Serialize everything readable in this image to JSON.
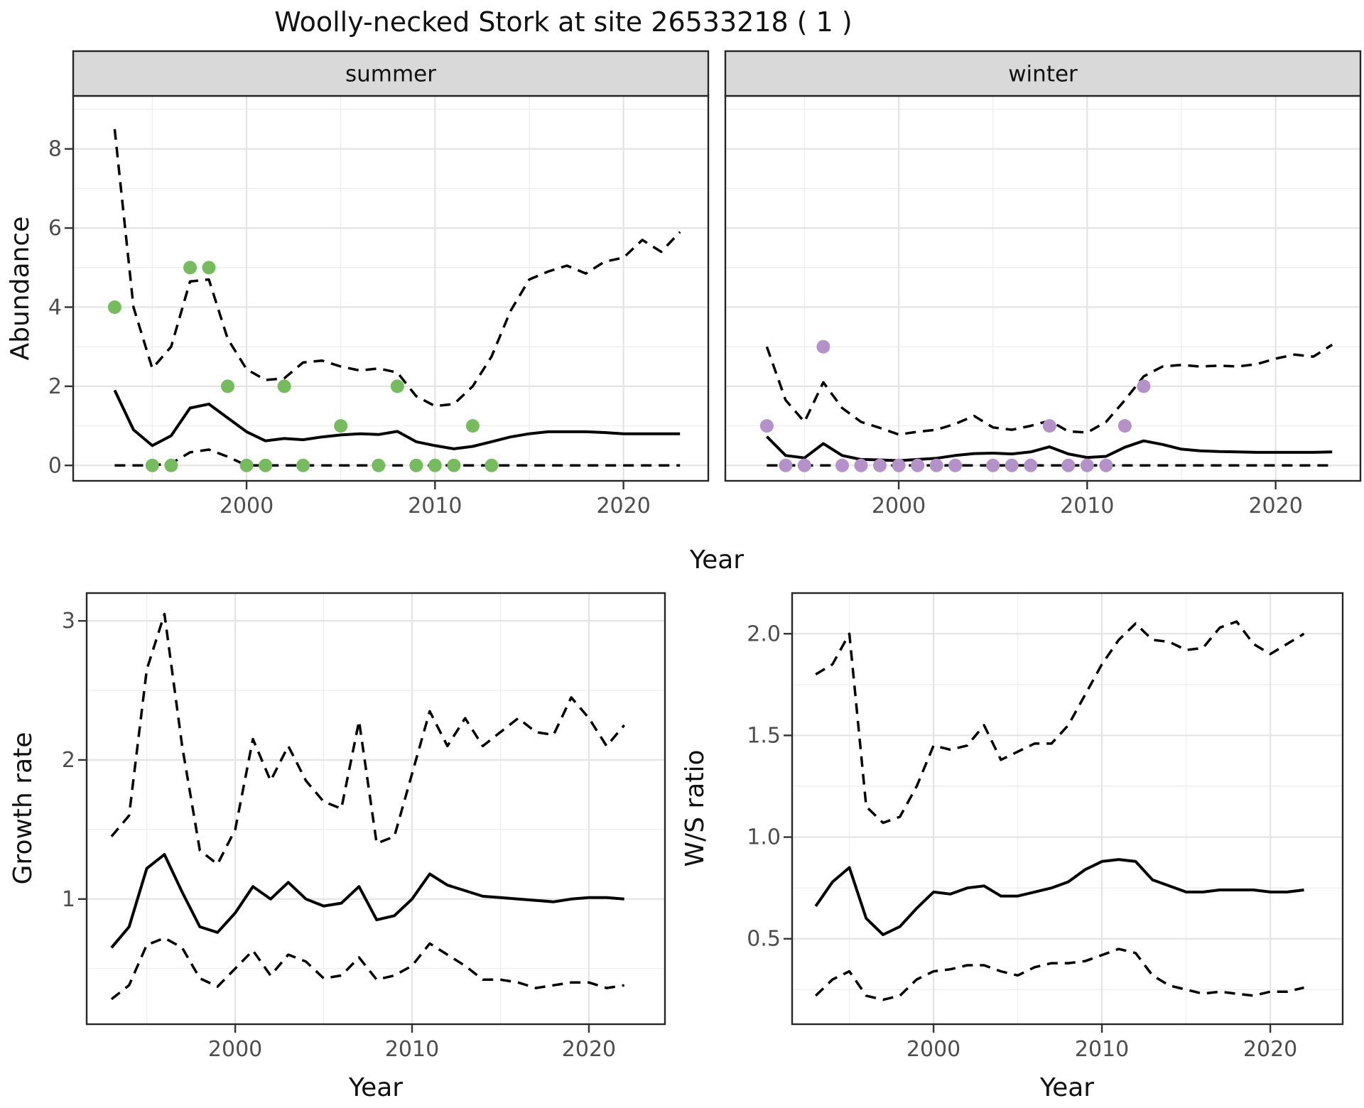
{
  "title": "Woolly-necked Stork at site 26533218 ( 1 )",
  "facets": {
    "summer_label": "summer",
    "winter_label": "winter"
  },
  "axis_titles": {
    "abundance": "Abundance",
    "year_top": "Year",
    "growth": "Growth rate",
    "ws": "W/S ratio",
    "year_growth": "Year",
    "year_ws": "Year"
  },
  "colors": {
    "summer_point": "#76bc5e",
    "winter_point": "#b591c9",
    "line": "#000000",
    "grid_major": "#e4e4e4",
    "grid_minor": "#efefef",
    "strip_fill": "#d9d9d9",
    "panel_border": "#262626",
    "tick_mark": "#333333",
    "tick_label": "#4d4d4d",
    "background": "#ffffff"
  },
  "chart_data": [
    {
      "id": "abundance_summer",
      "type": "line",
      "facet": "summer",
      "xlabel": "Year",
      "ylabel": "Abundance",
      "xlim": [
        1990.8,
        2024.5
      ],
      "ylim": [
        -0.39,
        9.34
      ],
      "x_ticks": {
        "values": [
          2000,
          2010,
          2020
        ],
        "labels": [
          "2000",
          "2010",
          "2020"
        ],
        "minor": [
          1995,
          2005,
          2015
        ]
      },
      "y_ticks": {
        "values": [
          0,
          2,
          4,
          6,
          8
        ],
        "labels": [
          "0",
          "2",
          "4",
          "6",
          "8"
        ],
        "minor": [
          1,
          3,
          5,
          7,
          9
        ]
      },
      "x": [
        1993,
        1994,
        1995,
        1996,
        1997,
        1998,
        1999,
        2000,
        2001,
        2002,
        2003,
        2004,
        2005,
        2006,
        2007,
        2008,
        2009,
        2010,
        2011,
        2012,
        2013,
        2014,
        2015,
        2016,
        2017,
        2018,
        2019,
        2020,
        2021,
        2022,
        2023
      ],
      "series": [
        {
          "name": "mean",
          "style": "solid",
          "values": [
            1.9,
            0.9,
            0.5,
            0.75,
            1.45,
            1.55,
            1.2,
            0.85,
            0.62,
            0.68,
            0.65,
            0.72,
            0.77,
            0.8,
            0.78,
            0.86,
            0.6,
            0.5,
            0.42,
            0.48,
            0.6,
            0.72,
            0.8,
            0.85,
            0.85,
            0.85,
            0.83,
            0.8,
            0.8,
            0.8,
            0.8
          ]
        },
        {
          "name": "upper_ci",
          "style": "dashed",
          "values": [
            8.5,
            4.0,
            2.45,
            3.0,
            4.65,
            4.7,
            3.2,
            2.43,
            2.16,
            2.2,
            2.6,
            2.65,
            2.5,
            2.4,
            2.45,
            2.35,
            1.75,
            1.5,
            1.55,
            2.0,
            2.75,
            3.9,
            4.7,
            4.9,
            5.05,
            4.85,
            5.15,
            5.25,
            5.7,
            5.4,
            5.9
          ]
        },
        {
          "name": "lower_ci",
          "style": "dashed",
          "values": [
            0,
            0,
            0,
            0.05,
            0.33,
            0.4,
            0.22,
            0,
            0,
            0,
            0,
            0,
            0,
            0,
            0,
            0,
            0,
            0,
            0,
            0,
            0,
            0,
            0,
            0,
            0,
            0,
            0,
            0,
            0,
            0,
            0
          ]
        }
      ],
      "observations": {
        "x": [
          1993,
          1995,
          1996,
          1997,
          1998,
          1999,
          2000,
          2001,
          2002,
          2003,
          2005,
          2007,
          2008,
          2009,
          2010,
          2011,
          2012,
          2013
        ],
        "y": [
          4,
          0,
          0,
          5,
          5,
          2,
          0,
          0,
          2,
          0,
          1,
          0,
          2,
          0,
          0,
          0,
          1,
          0
        ],
        "color_key": "summer_point"
      }
    },
    {
      "id": "abundance_winter",
      "type": "line",
      "facet": "winter",
      "xlabel": "Year",
      "ylabel": "Abundance",
      "xlim": [
        1990.8,
        2024.5
      ],
      "ylim": [
        -0.39,
        9.34
      ],
      "x_ticks": {
        "values": [
          2000,
          2010,
          2020
        ],
        "labels": [
          "2000",
          "2010",
          "2020"
        ],
        "minor": [
          1995,
          2005,
          2015
        ]
      },
      "y_ticks": {
        "values": [
          0,
          2,
          4,
          6,
          8
        ],
        "labels": [
          "0",
          "2",
          "4",
          "6",
          "8"
        ],
        "minor": [
          1,
          3,
          5,
          7,
          9
        ]
      },
      "x": [
        1993,
        1994,
        1995,
        1996,
        1997,
        1998,
        1999,
        2000,
        2001,
        2002,
        2003,
        2004,
        2005,
        2006,
        2007,
        2008,
        2009,
        2010,
        2011,
        2012,
        2013,
        2014,
        2015,
        2016,
        2017,
        2018,
        2019,
        2020,
        2021,
        2022,
        2023
      ],
      "series": [
        {
          "name": "mean",
          "style": "solid",
          "values": [
            0.73,
            0.25,
            0.19,
            0.55,
            0.25,
            0.15,
            0.14,
            0.12,
            0.15,
            0.18,
            0.25,
            0.3,
            0.31,
            0.29,
            0.34,
            0.47,
            0.29,
            0.2,
            0.23,
            0.46,
            0.62,
            0.53,
            0.41,
            0.37,
            0.35,
            0.34,
            0.33,
            0.33,
            0.33,
            0.33,
            0.34
          ]
        },
        {
          "name": "upper_ci",
          "style": "dashed",
          "values": [
            3.0,
            1.65,
            1.1,
            2.1,
            1.45,
            1.1,
            0.95,
            0.78,
            0.85,
            0.9,
            1.05,
            1.25,
            0.96,
            0.9,
            1.0,
            1.13,
            0.86,
            0.83,
            1.1,
            1.65,
            2.25,
            2.5,
            2.54,
            2.5,
            2.52,
            2.5,
            2.56,
            2.7,
            2.8,
            2.75,
            3.05
          ]
        },
        {
          "name": "lower_ci",
          "style": "dashed",
          "values": [
            0,
            0,
            0,
            0,
            0,
            0,
            0,
            0,
            0,
            0,
            0,
            0,
            0,
            0,
            0,
            0,
            0,
            0,
            0,
            0,
            0,
            0,
            0,
            0,
            0,
            0,
            0,
            0,
            0,
            0,
            0
          ]
        }
      ],
      "observations": {
        "x": [
          1993,
          1994,
          1995,
          1996,
          1997,
          1998,
          1999,
          2000,
          2001,
          2002,
          2003,
          2005,
          2006,
          2007,
          2008,
          2009,
          2010,
          2011,
          2012,
          2013
        ],
        "y": [
          1,
          0,
          0,
          3,
          0,
          0,
          0,
          0,
          0,
          0,
          0,
          0,
          0,
          0,
          1,
          0,
          0,
          0,
          1,
          2
        ],
        "color_key": "winter_point"
      }
    },
    {
      "id": "growth_rate",
      "type": "line",
      "xlabel": "Year",
      "ylabel": "Growth rate",
      "xlim": [
        1991.6,
        2024.3
      ],
      "ylim": [
        0.1,
        3.2
      ],
      "x_ticks": {
        "values": [
          2000,
          2010,
          2020
        ],
        "labels": [
          "2000",
          "2010",
          "2020"
        ],
        "minor": [
          1995,
          2005,
          2015
        ]
      },
      "y_ticks": {
        "values": [
          1,
          2,
          3
        ],
        "labels": [
          "1",
          "2",
          "3"
        ],
        "minor": [
          0.5,
          1.5,
          2.5
        ]
      },
      "x": [
        1993,
        1994,
        1995,
        1996,
        1997,
        1998,
        1999,
        2000,
        2001,
        2002,
        2003,
        2004,
        2005,
        2006,
        2007,
        2008,
        2009,
        2010,
        2011,
        2012,
        2013,
        2014,
        2015,
        2016,
        2017,
        2018,
        2019,
        2020,
        2021,
        2022
      ],
      "series": [
        {
          "name": "mean",
          "style": "solid",
          "values": [
            0.65,
            0.8,
            1.22,
            1.32,
            1.05,
            0.8,
            0.76,
            0.9,
            1.09,
            1.0,
            1.12,
            1.0,
            0.95,
            0.97,
            1.09,
            0.85,
            0.88,
            1.0,
            1.18,
            1.1,
            1.06,
            1.02,
            1.01,
            1.0,
            0.99,
            0.98,
            1.0,
            1.01,
            1.01,
            1.0
          ]
        },
        {
          "name": "upper_ci",
          "style": "dashed",
          "values": [
            1.45,
            1.6,
            2.65,
            3.05,
            2.1,
            1.35,
            1.25,
            1.5,
            2.15,
            1.85,
            2.1,
            1.85,
            1.7,
            1.65,
            2.28,
            1.4,
            1.45,
            1.9,
            2.35,
            2.1,
            2.3,
            2.1,
            2.2,
            2.3,
            2.2,
            2.18,
            2.45,
            2.3,
            2.1,
            2.25
          ]
        },
        {
          "name": "lower_ci",
          "style": "dashed",
          "values": [
            0.28,
            0.38,
            0.67,
            0.72,
            0.65,
            0.43,
            0.37,
            0.5,
            0.63,
            0.45,
            0.6,
            0.55,
            0.43,
            0.45,
            0.58,
            0.42,
            0.45,
            0.52,
            0.68,
            0.6,
            0.52,
            0.42,
            0.42,
            0.4,
            0.36,
            0.38,
            0.4,
            0.4,
            0.36,
            0.38
          ]
        }
      ]
    },
    {
      "id": "ws_ratio",
      "type": "line",
      "xlabel": "Year",
      "ylabel": "W/S ratio",
      "xlim": [
        1991.6,
        2024.3
      ],
      "ylim": [
        0.08,
        2.2
      ],
      "x_ticks": {
        "values": [
          2000,
          2010,
          2020
        ],
        "labels": [
          "2000",
          "2010",
          "2020"
        ],
        "minor": [
          1995,
          2005,
          2015
        ]
      },
      "y_ticks": {
        "values": [
          0.5,
          1.0,
          1.5,
          2.0
        ],
        "labels": [
          "0.5",
          "1.0",
          "1.5",
          "2.0"
        ],
        "minor": [
          0.25,
          0.75,
          1.25,
          1.75
        ]
      },
      "x": [
        1993,
        1994,
        1995,
        1996,
        1997,
        1998,
        1999,
        2000,
        2001,
        2002,
        2003,
        2004,
        2005,
        2006,
        2007,
        2008,
        2009,
        2010,
        2011,
        2012,
        2013,
        2014,
        2015,
        2016,
        2017,
        2018,
        2019,
        2020,
        2021,
        2022
      ],
      "series": [
        {
          "name": "mean",
          "style": "solid",
          "values": [
            0.66,
            0.78,
            0.85,
            0.6,
            0.52,
            0.56,
            0.65,
            0.73,
            0.72,
            0.75,
            0.76,
            0.71,
            0.71,
            0.73,
            0.75,
            0.78,
            0.84,
            0.88,
            0.89,
            0.88,
            0.79,
            0.76,
            0.73,
            0.73,
            0.74,
            0.74,
            0.74,
            0.73,
            0.73,
            0.74
          ]
        },
        {
          "name": "upper_ci",
          "style": "dashed",
          "values": [
            1.8,
            1.85,
            2.0,
            1.15,
            1.07,
            1.1,
            1.25,
            1.45,
            1.43,
            1.45,
            1.55,
            1.38,
            1.42,
            1.46,
            1.46,
            1.55,
            1.7,
            1.85,
            1.97,
            2.05,
            1.97,
            1.96,
            1.92,
            1.93,
            2.03,
            2.06,
            1.95,
            1.9,
            1.95,
            2.0
          ]
        },
        {
          "name": "lower_ci",
          "style": "dashed",
          "values": [
            0.22,
            0.3,
            0.34,
            0.22,
            0.2,
            0.22,
            0.3,
            0.34,
            0.35,
            0.37,
            0.37,
            0.34,
            0.32,
            0.36,
            0.38,
            0.38,
            0.39,
            0.42,
            0.45,
            0.43,
            0.32,
            0.27,
            0.25,
            0.23,
            0.24,
            0.23,
            0.22,
            0.24,
            0.24,
            0.26
          ]
        }
      ]
    }
  ]
}
